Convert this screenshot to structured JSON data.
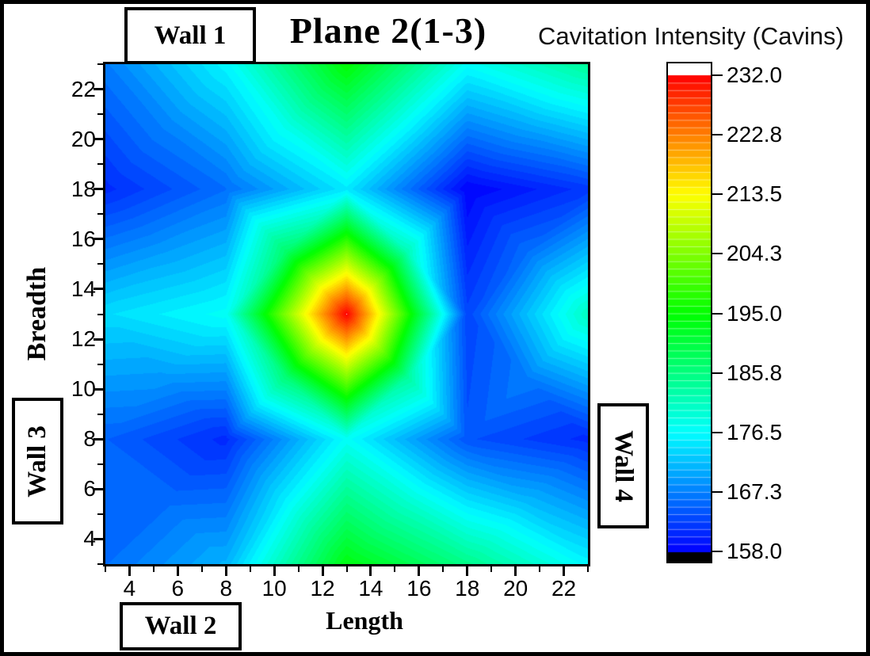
{
  "header": {
    "title": "Plane 2(1-3)",
    "colorbar_title": "Cavitation Intensity (Cavins)"
  },
  "walls": {
    "top": "Wall 1",
    "bottom": "Wall 2",
    "left": "Wall 3",
    "right": "Wall 4"
  },
  "axes": {
    "x_label": "Length",
    "y_label": "Breadth",
    "x_range": [
      3,
      23
    ],
    "y_range": [
      3,
      23
    ],
    "x_major_ticks": [
      4,
      6,
      8,
      10,
      12,
      14,
      16,
      18,
      20,
      22
    ],
    "y_major_ticks": [
      4,
      6,
      8,
      10,
      12,
      14,
      16,
      18,
      20,
      22
    ],
    "x_minor_ticks": [
      3,
      5,
      7,
      9,
      11,
      13,
      15,
      17,
      19,
      21,
      23
    ],
    "y_minor_ticks": [
      3,
      5,
      7,
      9,
      11,
      13,
      15,
      17,
      19,
      21,
      23
    ]
  },
  "colorbar": {
    "tick_labels": [
      "232.0",
      "222.8",
      "213.5",
      "204.3",
      "195.0",
      "185.8",
      "176.5",
      "167.3",
      "158.0"
    ],
    "vmin": 158,
    "vmax": 232,
    "levels": 64,
    "over_color": "#ffffff",
    "under_color": "#000000",
    "gradient_stops": [
      "#0000ff",
      "#00ffff",
      "#00ff00",
      "#ffff00",
      "#ff0000"
    ]
  },
  "chart_data": {
    "type": "heatmap",
    "title": "Plane 2(1-3)",
    "xlabel": "Length",
    "ylabel": "Breadth",
    "zlabel": "Cavitation Intensity (Cavins)",
    "xlim": [
      3,
      23
    ],
    "ylim": [
      3,
      23
    ],
    "x": [
      3,
      8,
      13,
      18,
      23
    ],
    "y": [
      3,
      8,
      13,
      18,
      23
    ],
    "values_rows_y_ascending": [
      [
        166,
        171,
        194,
        185,
        176
      ],
      [
        165,
        161,
        177,
        164,
        161
      ],
      [
        174,
        177,
        232,
        163,
        181
      ],
      [
        161,
        166,
        175,
        158,
        162
      ],
      [
        167,
        176,
        195,
        177,
        184
      ]
    ],
    "vmin": 158,
    "vmax": 232,
    "levels": 64,
    "colormap": [
      "#0000ff",
      "#00ffff",
      "#00ff00",
      "#ffff00",
      "#ff0000"
    ],
    "over_color": "#ffffff",
    "under_color": "#000000",
    "interpolation": "triangulated-linear",
    "peak": {
      "x": 13,
      "y": 13,
      "value": 232
    },
    "legend_position": "right-colorbar",
    "grid": false
  }
}
